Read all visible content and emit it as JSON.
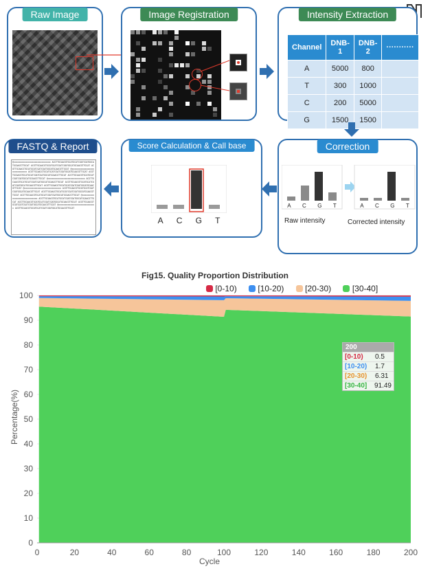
{
  "logo": {
    "text": "N"
  },
  "workflow": {
    "raw_image": {
      "title": "Raw Image"
    },
    "registration": {
      "title": "Image Registration"
    },
    "extraction": {
      "title": "Intensity Extraction",
      "headers": [
        "Channel",
        "DNB-1",
        "DNB-2",
        "···········"
      ],
      "rows": [
        [
          "A",
          "5000",
          "800",
          ""
        ],
        [
          "T",
          "300",
          "1000",
          ""
        ],
        [
          "C",
          "200",
          "5000",
          ""
        ],
        [
          "G",
          "1500",
          "1500",
          ""
        ]
      ]
    },
    "fastq": {
      "title": "FASTQ & Report"
    },
    "score": {
      "title": "Score Calculation & Call base",
      "bases": [
        "A",
        "C",
        "G",
        "T"
      ]
    },
    "correction": {
      "title": "Correction",
      "bases": [
        "A",
        "C",
        "G",
        "T"
      ],
      "raw_label": "Raw intensity",
      "corrected_label": "Corrected intensity"
    }
  },
  "chart_data": {
    "type": "area",
    "title": "Fig15. Quality Proportion Distribution",
    "xlabel": "Cycle",
    "ylabel": "Percentage(%)",
    "xlim": [
      0,
      200
    ],
    "ylim": [
      0,
      100
    ],
    "xticks": [
      0,
      20,
      40,
      60,
      80,
      100,
      120,
      140,
      160,
      180,
      200
    ],
    "yticks": [
      0,
      10,
      20,
      30,
      40,
      50,
      60,
      70,
      80,
      90,
      100
    ],
    "legend_position": "top",
    "x": [
      1,
      100,
      101,
      200
    ],
    "series": [
      {
        "name": "[0-10)",
        "color": "#d62a45",
        "values": [
          0.3,
          0.4,
          0.3,
          0.5
        ]
      },
      {
        "name": "[10-20)",
        "color": "#3d8ff0",
        "values": [
          0.7,
          1.5,
          0.8,
          1.7
        ]
      },
      {
        "name": "[20-30)",
        "color": "#f6c59a",
        "values": [
          3.5,
          6.7,
          4.7,
          6.31
        ]
      },
      {
        "name": "[30-40]",
        "color": "#4fd05a",
        "values": [
          95.5,
          91.4,
          94.2,
          91.49
        ]
      }
    ],
    "tooltip": {
      "title": "200",
      "rows": [
        {
          "label": "[0-10)",
          "value": "0.5",
          "color": "#d62a45"
        },
        {
          "label": "[10-20)",
          "value": "1.7",
          "color": "#3d8ff0"
        },
        {
          "label": "[20-30)",
          "value": "6.31",
          "color": "#e6932e"
        },
        {
          "label": "[30-40]",
          "value": "91.49",
          "color": "#3ab545"
        }
      ]
    }
  }
}
